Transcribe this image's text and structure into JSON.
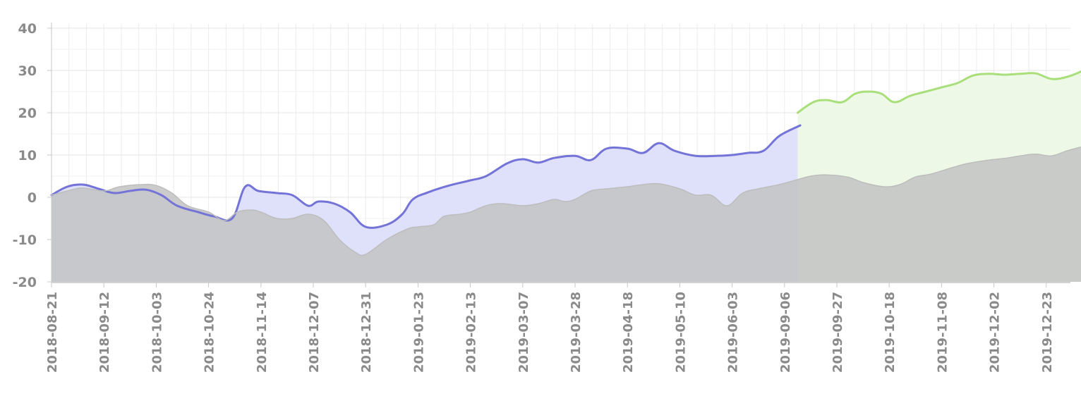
{
  "chart_data": {
    "type": "area",
    "title": "",
    "xlabel": "",
    "ylabel": "",
    "ylim": [
      -20,
      40
    ],
    "yticks": [
      40,
      30,
      20,
      10,
      0,
      -10,
      -20
    ],
    "ytick_labels": [
      "40",
      "30",
      "20",
      "10",
      "0",
      "-10",
      "-20"
    ],
    "xtick_labels": [
      "2018-08-21",
      "2018-09-12",
      "2018-10-03",
      "2018-10-24",
      "2018-11-14",
      "2018-12-07",
      "2018-12-31",
      "2019-01-23",
      "2019-02-13",
      "2019-03-07",
      "2019-03-28",
      "2019-04-18",
      "2019-05-10",
      "2019-06-03",
      "2019-09-06",
      "2019-09-27",
      "2019-10-18",
      "2019-11-08",
      "2019-12-02",
      "2019-12-23"
    ],
    "grid": true,
    "legend": "none",
    "series": [
      {
        "role": "baseline",
        "color": "#bdbdbd",
        "fill": "#c4c4c4",
        "points": [
          [
            0,
            0.5
          ],
          [
            0.3,
            1.5
          ],
          [
            0.6,
            2.2
          ],
          [
            1.0,
            1.5
          ],
          [
            1.3,
            2.5
          ],
          [
            1.7,
            3.0
          ],
          [
            2.0,
            2.8
          ],
          [
            2.3,
            1.0
          ],
          [
            2.6,
            -2.0
          ],
          [
            3.0,
            -3.5
          ],
          [
            3.3,
            -5.5
          ],
          [
            3.55,
            -3.5
          ],
          [
            3.8,
            -3.0
          ],
          [
            4.0,
            -3.5
          ],
          [
            4.3,
            -5.0
          ],
          [
            4.6,
            -5.0
          ],
          [
            4.9,
            -4.0
          ],
          [
            5.2,
            -5.5
          ],
          [
            5.5,
            -10.0
          ],
          [
            5.8,
            -13.0
          ],
          [
            6.0,
            -13.5
          ],
          [
            6.4,
            -10.0
          ],
          [
            6.8,
            -7.5
          ],
          [
            7.0,
            -7.0
          ],
          [
            7.3,
            -6.5
          ],
          [
            7.5,
            -4.5
          ],
          [
            7.8,
            -4.0
          ],
          [
            8.0,
            -3.5
          ],
          [
            8.3,
            -2.0
          ],
          [
            8.6,
            -1.5
          ],
          [
            9.0,
            -2.0
          ],
          [
            9.3,
            -1.5
          ],
          [
            9.6,
            -0.5
          ],
          [
            9.8,
            -1.0
          ],
          [
            10.0,
            -0.5
          ],
          [
            10.3,
            1.5
          ],
          [
            10.6,
            2.0
          ],
          [
            11.0,
            2.5
          ],
          [
            11.3,
            3.0
          ],
          [
            11.6,
            3.2
          ],
          [
            12.0,
            2.0
          ],
          [
            12.3,
            0.5
          ],
          [
            12.6,
            0.5
          ],
          [
            12.9,
            -2.0
          ],
          [
            13.2,
            1.0
          ],
          [
            13.5,
            2.0
          ],
          [
            13.9,
            3.0
          ],
          [
            14.2,
            4.0
          ],
          [
            14.5,
            5.0
          ],
          [
            14.8,
            5.3
          ],
          [
            15.2,
            4.8
          ],
          [
            15.5,
            3.5
          ],
          [
            15.9,
            2.5
          ],
          [
            16.2,
            3.0
          ],
          [
            16.5,
            4.8
          ],
          [
            16.8,
            5.5
          ],
          [
            17.2,
            7.0
          ],
          [
            17.5,
            8.0
          ],
          [
            17.9,
            8.8
          ],
          [
            18.2,
            9.2
          ],
          [
            18.5,
            9.8
          ],
          [
            18.8,
            10.2
          ],
          [
            19.1,
            9.8
          ],
          [
            19.4,
            11.0
          ],
          [
            19.7,
            12.0
          ],
          [
            20.0,
            12.8
          ],
          [
            20.3,
            13.0
          ]
        ]
      },
      {
        "role": "history",
        "color": "#7373d8",
        "fill": "#dfe0fa",
        "points": [
          [
            0,
            0.5
          ],
          [
            0.3,
            2.5
          ],
          [
            0.6,
            3.0
          ],
          [
            0.9,
            2.0
          ],
          [
            1.2,
            1.0
          ],
          [
            1.5,
            1.5
          ],
          [
            1.8,
            1.8
          ],
          [
            2.1,
            0.5
          ],
          [
            2.4,
            -2.0
          ],
          [
            2.8,
            -3.5
          ],
          [
            3.1,
            -4.5
          ],
          [
            3.45,
            -5.0
          ],
          [
            3.7,
            2.5
          ],
          [
            3.95,
            1.5
          ],
          [
            4.3,
            1.0
          ],
          [
            4.6,
            0.5
          ],
          [
            4.9,
            -2.0
          ],
          [
            5.1,
            -1.0
          ],
          [
            5.4,
            -1.5
          ],
          [
            5.7,
            -3.5
          ],
          [
            6.0,
            -7.0
          ],
          [
            6.4,
            -6.5
          ],
          [
            6.7,
            -4.0
          ],
          [
            6.9,
            -0.5
          ],
          [
            7.2,
            1.2
          ],
          [
            7.6,
            2.8
          ],
          [
            8.0,
            4.0
          ],
          [
            8.3,
            5.0
          ],
          [
            8.7,
            8.0
          ],
          [
            9.0,
            9.0
          ],
          [
            9.3,
            8.2
          ],
          [
            9.6,
            9.3
          ],
          [
            10.0,
            9.8
          ],
          [
            10.3,
            8.8
          ],
          [
            10.6,
            11.5
          ],
          [
            11.0,
            11.5
          ],
          [
            11.3,
            10.5
          ],
          [
            11.6,
            12.8
          ],
          [
            11.9,
            11.0
          ],
          [
            12.3,
            9.8
          ],
          [
            12.7,
            9.8
          ],
          [
            13.0,
            10.0
          ],
          [
            13.3,
            10.5
          ],
          [
            13.6,
            11.0
          ],
          [
            13.9,
            14.5
          ],
          [
            14.3,
            17.0
          ]
        ]
      },
      {
        "role": "forecast",
        "color": "#a9df7a",
        "fill": "#eef8e6",
        "points": [
          [
            14.25,
            20.0
          ],
          [
            14.55,
            22.5
          ],
          [
            14.8,
            23.0
          ],
          [
            15.1,
            22.5
          ],
          [
            15.35,
            24.5
          ],
          [
            15.6,
            25.0
          ],
          [
            15.85,
            24.5
          ],
          [
            16.1,
            22.5
          ],
          [
            16.4,
            24.0
          ],
          [
            16.7,
            25.0
          ],
          [
            17.0,
            26.0
          ],
          [
            17.3,
            27.0
          ],
          [
            17.6,
            28.8
          ],
          [
            17.9,
            29.2
          ],
          [
            18.2,
            29.0
          ],
          [
            18.5,
            29.2
          ],
          [
            18.8,
            29.3
          ],
          [
            19.1,
            28.0
          ],
          [
            19.4,
            28.5
          ],
          [
            19.7,
            30.0
          ],
          [
            20.0,
            32.5
          ],
          [
            20.3,
            33.8
          ]
        ]
      }
    ]
  }
}
